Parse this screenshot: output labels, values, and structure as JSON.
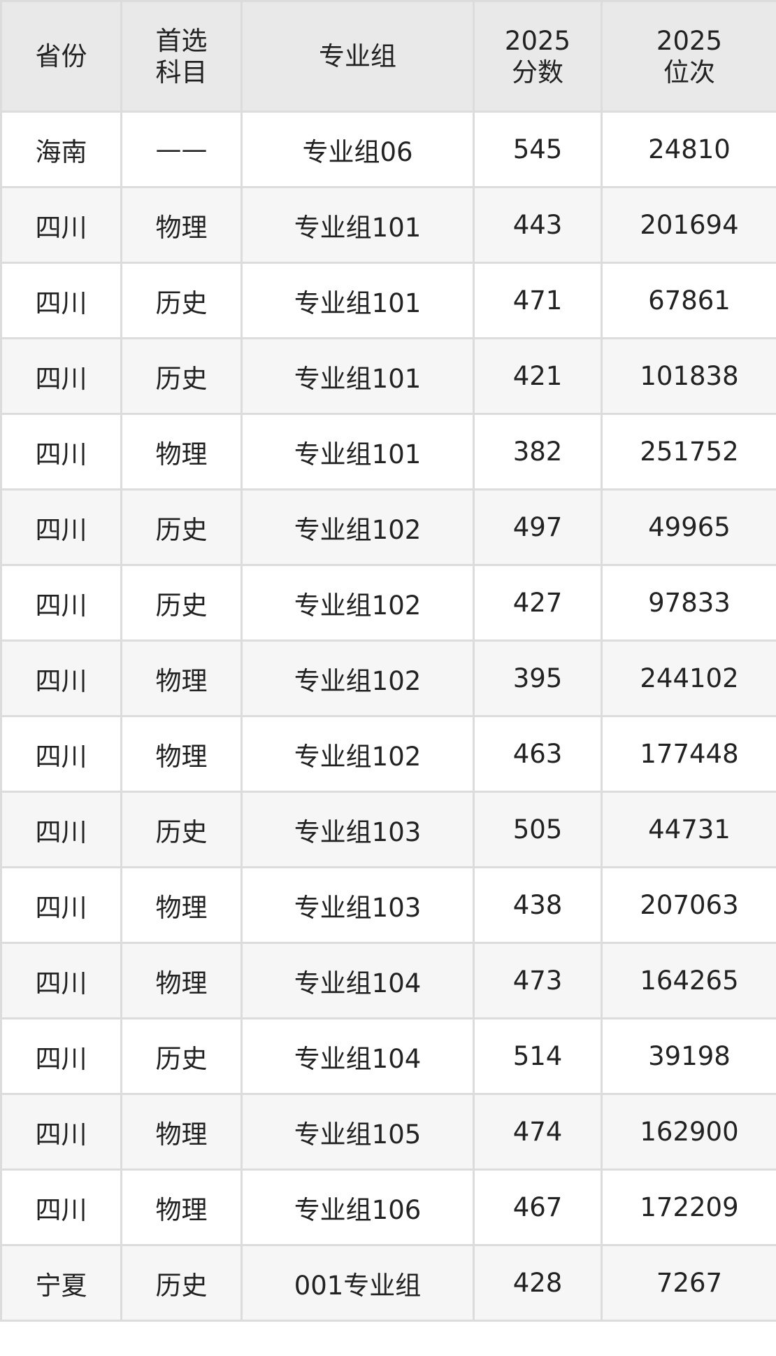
{
  "table": {
    "headers": [
      {
        "lines": [
          "省份"
        ]
      },
      {
        "lines": [
          "首选",
          "科目"
        ]
      },
      {
        "lines": [
          "专业组"
        ]
      },
      {
        "lines": [
          "2025",
          "分数"
        ]
      },
      {
        "lines": [
          "2025",
          "位次"
        ]
      }
    ],
    "rows": [
      [
        "海南",
        "——",
        "专业组06",
        "545",
        "24810"
      ],
      [
        "四川",
        "物理",
        "专业组101",
        "443",
        "201694"
      ],
      [
        "四川",
        "历史",
        "专业组101",
        "471",
        "67861"
      ],
      [
        "四川",
        "历史",
        "专业组101",
        "421",
        "101838"
      ],
      [
        "四川",
        "物理",
        "专业组101",
        "382",
        "251752"
      ],
      [
        "四川",
        "历史",
        "专业组102",
        "497",
        "49965"
      ],
      [
        "四川",
        "历史",
        "专业组102",
        "427",
        "97833"
      ],
      [
        "四川",
        "物理",
        "专业组102",
        "395",
        "244102"
      ],
      [
        "四川",
        "物理",
        "专业组102",
        "463",
        "177448"
      ],
      [
        "四川",
        "历史",
        "专业组103",
        "505",
        "44731"
      ],
      [
        "四川",
        "物理",
        "专业组103",
        "438",
        "207063"
      ],
      [
        "四川",
        "物理",
        "专业组104",
        "473",
        "164265"
      ],
      [
        "四川",
        "历史",
        "专业组104",
        "514",
        "39198"
      ],
      [
        "四川",
        "物理",
        "专业组105",
        "474",
        "162900"
      ],
      [
        "四川",
        "物理",
        "专业组106",
        "467",
        "172209"
      ],
      [
        "宁夏",
        "历史",
        "001专业组",
        "428",
        "7267"
      ]
    ]
  }
}
